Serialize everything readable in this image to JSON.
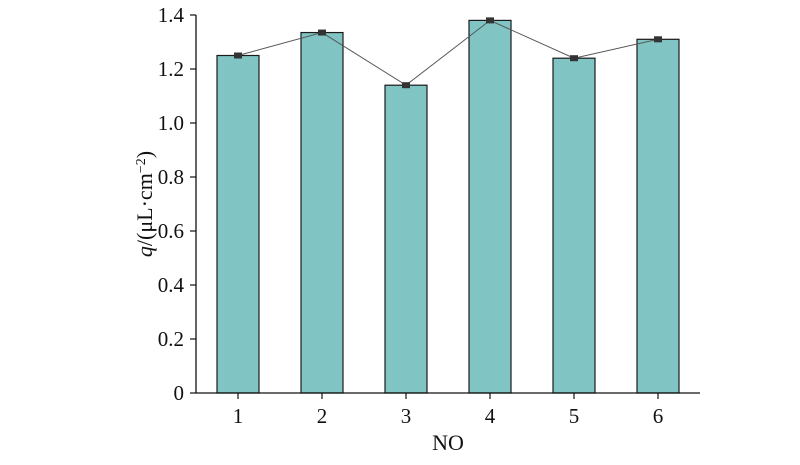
{
  "chart_data": {
    "type": "bar",
    "categories": [
      "1",
      "2",
      "3",
      "4",
      "5",
      "6"
    ],
    "values": [
      1.25,
      1.335,
      1.14,
      1.38,
      1.24,
      1.31
    ],
    "line_overlay": true,
    "title": "",
    "xlabel": "NO",
    "ylabel_var": "q",
    "ylabel_unit": "/(μL·cm",
    "ylabel_exp": "−2",
    "ylabel_close": ")",
    "ylim": [
      0,
      1.4
    ],
    "yticks": [
      0,
      0.2,
      0.4,
      0.6,
      0.8,
      1.0,
      1.2,
      1.4
    ],
    "ytick_labels": [
      "0",
      "0.2",
      "0.4",
      "0.6",
      "0.8",
      "1.0",
      "1.2",
      "1.4"
    ],
    "grid": false,
    "legend": "none",
    "colors": {
      "bar_fill": "#80c4c4",
      "bar_stroke": "#1a1a1a",
      "line": "#555555",
      "marker": "#333333",
      "axis": "#111111"
    }
  }
}
